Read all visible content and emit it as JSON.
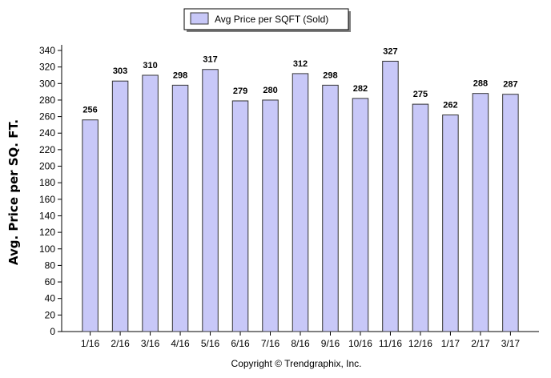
{
  "chart_data": {
    "type": "bar",
    "categories": [
      "1/16",
      "2/16",
      "3/16",
      "4/16",
      "5/16",
      "6/16",
      "7/16",
      "8/16",
      "9/16",
      "10/16",
      "11/16",
      "12/16",
      "1/17",
      "2/17",
      "3/17"
    ],
    "series": [
      {
        "name": "Avg Price per SQFT (Sold)",
        "values": [
          256,
          303,
          310,
          298,
          317,
          279,
          280,
          312,
          298,
          282,
          327,
          275,
          262,
          288,
          287
        ]
      }
    ],
    "ylabel": "Avg. Price per SQ. FT.",
    "xlabel": "",
    "ylim": [
      0,
      340
    ],
    "ytick_step": 20,
    "legend_position": "top-center",
    "grid": false,
    "colors": {
      "bar_fill": "#c8c8f8",
      "bar_stroke": "#333333",
      "axis": "#000000"
    }
  },
  "footer": {
    "copyright": "Copyright © Trendgraphix, Inc."
  }
}
